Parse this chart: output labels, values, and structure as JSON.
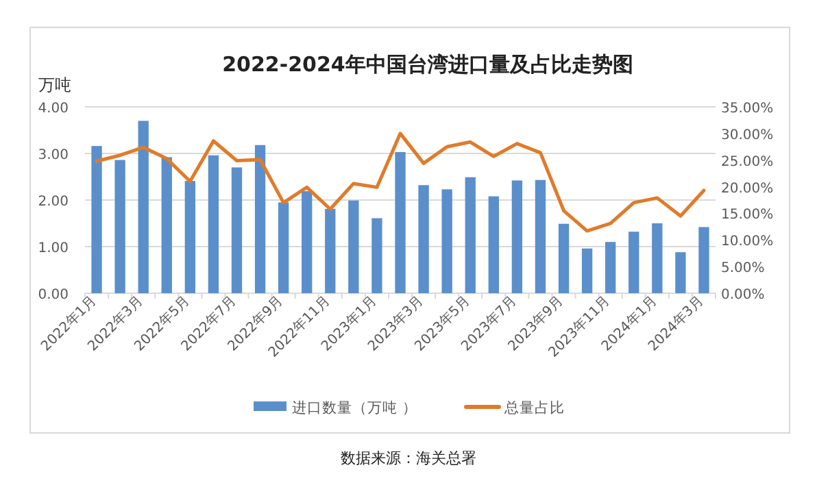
{
  "chart_data": {
    "type": "bar",
    "title": "2022-2024年中国台湾进口量及占比走势图",
    "ylabel": "万吨",
    "annotations": [
      "数据来源：海关总署"
    ],
    "categories": [
      "2022年1月",
      null,
      "2022年3月",
      null,
      "2022年5月",
      null,
      "2022年7月",
      null,
      "2022年9月",
      null,
      "2022年11月",
      null,
      "2023年1月",
      null,
      "2023年3月",
      null,
      "2023年5月",
      null,
      "2023年7月",
      null,
      "2023年9月",
      null,
      "2023年11月",
      null,
      "2024年1月",
      null,
      "2024年3月"
    ],
    "series": [
      {
        "name": "进口数量（万吨 ）",
        "type": "bar",
        "color": "#5b8fcb",
        "values": [
          3.16,
          2.86,
          3.7,
          2.92,
          2.41,
          2.96,
          2.7,
          3.18,
          1.95,
          2.19,
          1.81,
          1.99,
          1.61,
          3.03,
          2.32,
          2.23,
          2.49,
          2.08,
          2.42,
          2.43,
          1.49,
          0.96,
          1.1,
          1.32,
          1.5,
          0.88,
          1.42
        ]
      },
      {
        "name": "总量占比",
        "type": "line",
        "axis": "y2",
        "color": "#e07b2a",
        "values": [
          24.8,
          25.9,
          27.4,
          25.3,
          21.0,
          28.6,
          24.9,
          25.1,
          17.0,
          19.9,
          15.8,
          20.6,
          19.9,
          30.0,
          24.4,
          27.5,
          28.4,
          25.7,
          28.1,
          26.4,
          15.5,
          11.7,
          13.1,
          17.0,
          17.9,
          14.5,
          19.3
        ]
      }
    ],
    "ylim": [
      0,
      4
    ],
    "yticks": [
      {
        "value": 0,
        "label": "0.00"
      },
      {
        "value": 1,
        "label": "1.00"
      },
      {
        "value": 2,
        "label": "2.00"
      },
      {
        "value": 3,
        "label": "3.00"
      },
      {
        "value": 4,
        "label": "4.00"
      }
    ],
    "y2lim": [
      0,
      35
    ],
    "y2ticks": [
      {
        "value": 0,
        "label": "0.00%"
      },
      {
        "value": 5,
        "label": "5.00%"
      },
      {
        "value": 10,
        "label": "10.00%"
      },
      {
        "value": 15,
        "label": "15.00%"
      },
      {
        "value": 20,
        "label": "20.00%"
      },
      {
        "value": 25,
        "label": "25.00%"
      },
      {
        "value": 30,
        "label": "30.00%"
      },
      {
        "value": 35,
        "label": "35.00%"
      }
    ],
    "grid": "y",
    "legend": "bottom",
    "marker": "none",
    "line_style": "solid"
  }
}
